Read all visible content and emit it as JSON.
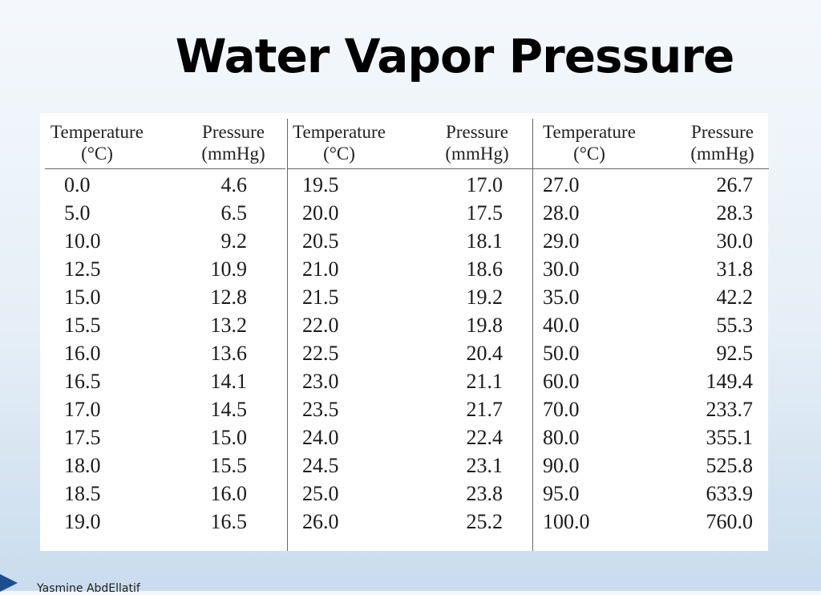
{
  "slide": {
    "title": "Water Vapor Pressure",
    "footer": "Yasmine AbdEllatif"
  },
  "table": {
    "headers": {
      "temperature": [
        "Temperature",
        "(°C)"
      ],
      "pressure": [
        "Pressure",
        "(mmHg)"
      ]
    },
    "groups": [
      {
        "rows": [
          [
            "0.0",
            "4.6"
          ],
          [
            "5.0",
            "6.5"
          ],
          [
            "10.0",
            "9.2"
          ],
          [
            "12.5",
            "10.9"
          ],
          [
            "15.0",
            "12.8"
          ],
          [
            "15.5",
            "13.2"
          ],
          [
            "16.0",
            "13.6"
          ],
          [
            "16.5",
            "14.1"
          ],
          [
            "17.0",
            "14.5"
          ],
          [
            "17.5",
            "15.0"
          ],
          [
            "18.0",
            "15.5"
          ],
          [
            "18.5",
            "16.0"
          ],
          [
            "19.0",
            "16.5"
          ]
        ]
      },
      {
        "rows": [
          [
            "19.5",
            "17.0"
          ],
          [
            "20.0",
            "17.5"
          ],
          [
            "20.5",
            "18.1"
          ],
          [
            "21.0",
            "18.6"
          ],
          [
            "21.5",
            "19.2"
          ],
          [
            "22.0",
            "19.8"
          ],
          [
            "22.5",
            "20.4"
          ],
          [
            "23.0",
            "21.1"
          ],
          [
            "23.5",
            "21.7"
          ],
          [
            "24.0",
            "22.4"
          ],
          [
            "24.5",
            "23.1"
          ],
          [
            "25.0",
            "23.8"
          ],
          [
            "26.0",
            "25.2"
          ]
        ]
      },
      {
        "rows": [
          [
            "27.0",
            "26.7"
          ],
          [
            "28.0",
            "28.3"
          ],
          [
            "29.0",
            "30.0"
          ],
          [
            "30.0",
            "31.8"
          ],
          [
            "35.0",
            "42.2"
          ],
          [
            "40.0",
            "55.3"
          ],
          [
            "50.0",
            "92.5"
          ],
          [
            "60.0",
            "149.4"
          ],
          [
            "70.0",
            "233.7"
          ],
          [
            "80.0",
            "355.1"
          ],
          [
            "90.0",
            "525.8"
          ],
          [
            "95.0",
            "633.9"
          ],
          [
            "100.0",
            "760.0"
          ]
        ]
      }
    ]
  },
  "colors": {
    "accent": "#1f4e8c",
    "rule": "#666666"
  }
}
